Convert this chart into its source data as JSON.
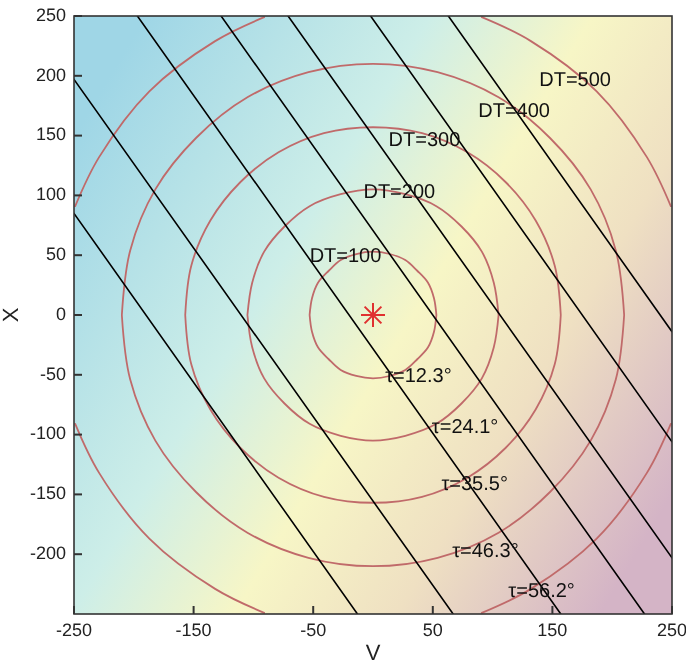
{
  "chart_data": {
    "type": "line",
    "xlabel": "V",
    "ylabel": "X",
    "xlim": [
      -250,
      250
    ],
    "ylim": [
      -250,
      250
    ],
    "xticks": [
      -250,
      -150,
      -50,
      50,
      150,
      250
    ],
    "yticks": [
      -200,
      -150,
      -100,
      -50,
      0,
      50,
      100,
      150,
      200,
      250
    ],
    "line_style": "solid",
    "series": [
      {
        "color": "#c06a6a",
        "x": [
          -53,
          -51,
          -46,
          -37,
          -27,
          -14,
          0,
          14,
          27,
          37,
          46,
          51,
          53,
          null,
          -53,
          -51,
          -46,
          -37,
          -27,
          -14,
          0,
          14,
          27,
          37,
          46,
          51,
          53
        ],
        "values": [
          0,
          14,
          27,
          37,
          46,
          51,
          53,
          51,
          46,
          37,
          27,
          14,
          0,
          null,
          0,
          -14,
          -27,
          -37,
          -46,
          -51,
          -53,
          -51,
          -46,
          -37,
          -27,
          -14,
          0
        ]
      },
      {
        "color": "#c06a6a",
        "x": [
          -105,
          -101,
          -91,
          -74,
          -53,
          -27,
          0,
          27,
          53,
          74,
          91,
          101,
          105,
          null,
          -105,
          -101,
          -91,
          -74,
          -53,
          -27,
          0,
          27,
          53,
          74,
          91,
          101,
          105
        ],
        "values": [
          0,
          27,
          53,
          74,
          91,
          101,
          105,
          101,
          91,
          74,
          53,
          27,
          0,
          null,
          0,
          -27,
          -53,
          -74,
          -91,
          -101,
          -105,
          -101,
          -91,
          -74,
          -53,
          -27,
          0
        ]
      },
      {
        "color": "#c06a6a",
        "x": [
          -157,
          -152,
          -136,
          -111,
          -79,
          -41,
          0,
          41,
          79,
          111,
          136,
          152,
          157,
          null,
          -157,
          -152,
          -136,
          -111,
          -79,
          -41,
          0,
          41,
          79,
          111,
          136,
          152,
          157
        ],
        "values": [
          0,
          41,
          79,
          111,
          136,
          152,
          157,
          152,
          136,
          111,
          79,
          41,
          0,
          null,
          0,
          -41,
          -79,
          -111,
          -136,
          -152,
          -157,
          -152,
          -136,
          -111,
          -79,
          -41,
          0
        ]
      },
      {
        "color": "#c06a6a",
        "x": [
          -210,
          -203,
          -182,
          -148,
          -105,
          -54,
          0,
          54,
          105,
          148,
          182,
          203,
          210,
          null,
          -210,
          -203,
          -182,
          -148,
          -105,
          -54,
          0,
          54,
          105,
          148,
          182,
          203,
          210
        ],
        "values": [
          0,
          54,
          105,
          148,
          182,
          203,
          210,
          203,
          182,
          148,
          105,
          54,
          0,
          null,
          0,
          -54,
          -105,
          -148,
          -182,
          -203,
          -210,
          -203,
          -182,
          -148,
          -105,
          -54,
          0
        ]
      },
      {
        "color": "#c06a6a",
        "x": [
          -249,
          -229,
          -187,
          -132,
          -91,
          null,
          91,
          132,
          187,
          229,
          249,
          null,
          -249,
          -229,
          -187,
          -132,
          -91,
          null,
          91,
          132,
          187,
          229,
          249
        ],
        "values": [
          91,
          132,
          187,
          229,
          249,
          null,
          249,
          229,
          187,
          132,
          91,
          null,
          -91,
          -132,
          -187,
          -229,
          -249,
          null,
          -249,
          -229,
          -187,
          -132,
          -91
        ]
      },
      {
        "color": "#000000",
        "x": [
          -250,
          -13
        ],
        "values": [
          85,
          -250
        ]
      },
      {
        "color": "#000000",
        "x": [
          -250,
          67
        ],
        "values": [
          197,
          -250
        ]
      },
      {
        "color": "#000000",
        "x": [
          -197,
          157
        ],
        "values": [
          250,
          -250
        ]
      },
      {
        "color": "#000000",
        "x": [
          -127,
          227
        ],
        "values": [
          250,
          -250
        ]
      },
      {
        "color": "#000000",
        "x": [
          -71,
          250
        ],
        "values": [
          250,
          -203
        ]
      },
      {
        "color": "#000000",
        "x": [
          -2,
          250
        ],
        "values": [
          250,
          -106
        ]
      },
      {
        "color": "#000000",
        "x": [
          63,
          250
        ],
        "values": [
          250,
          -14
        ]
      },
      {
        "type": "scatter",
        "marker": "cross",
        "color": "#e03030",
        "x": [
          0
        ],
        "values": [
          0
        ]
      }
    ],
    "annotations": [
      "DT=100",
      "DT=200",
      "DT=300",
      "DT=400",
      "DT=500",
      "τ=12.3°",
      "τ=24.1°",
      "τ=35.5°",
      "τ=46.3°",
      "τ=56.2°"
    ]
  }
}
